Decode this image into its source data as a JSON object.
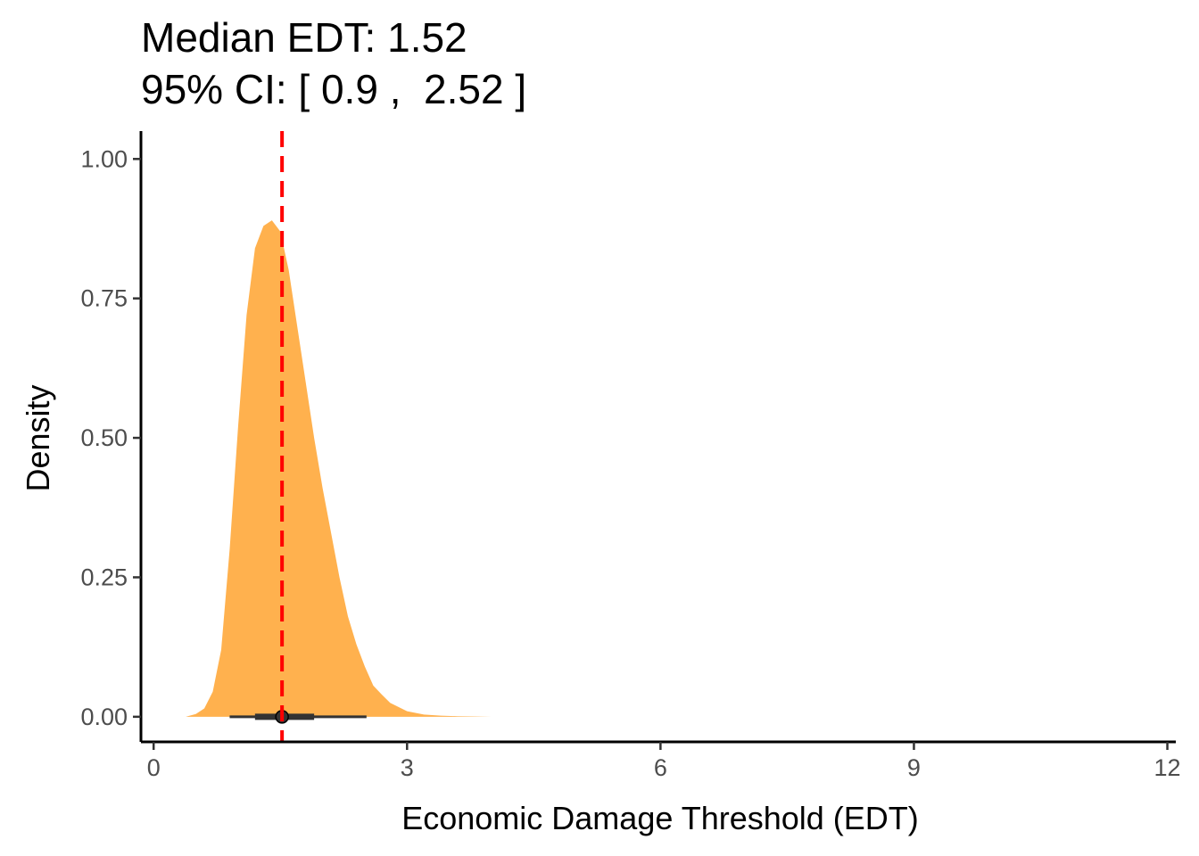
{
  "chart_data": {
    "type": "area",
    "title_lines": [
      "Median EDT: 1.52",
      "95% CI: [ 0.9 ,  2.52 ]"
    ],
    "xlabel": "Economic Damage Threshold (EDT)",
    "ylabel": "Density",
    "xlim": [
      -0.15,
      12.1
    ],
    "ylim": [
      -0.045,
      1.05
    ],
    "x_ticks": [
      0,
      3,
      6,
      9,
      12
    ],
    "x_tick_labels": [
      "0",
      "3",
      "6",
      "9",
      "12"
    ],
    "y_ticks": [
      0,
      0.25,
      0.5,
      0.75,
      1.0
    ],
    "y_tick_labels": [
      "0.00",
      "0.25",
      "0.50",
      "0.75",
      "1.00"
    ],
    "density": {
      "x": [
        0.38,
        0.5,
        0.6,
        0.7,
        0.8,
        0.9,
        1.0,
        1.1,
        1.2,
        1.3,
        1.4,
        1.5,
        1.6,
        1.7,
        1.8,
        1.9,
        2.0,
        2.1,
        2.2,
        2.3,
        2.4,
        2.5,
        2.6,
        2.7,
        2.8,
        3.0,
        3.2,
        3.4,
        3.6,
        3.8,
        4.0
      ],
      "y": [
        0.0,
        0.005,
        0.015,
        0.045,
        0.12,
        0.3,
        0.52,
        0.72,
        0.84,
        0.88,
        0.89,
        0.87,
        0.8,
        0.7,
        0.6,
        0.5,
        0.41,
        0.33,
        0.25,
        0.18,
        0.13,
        0.09,
        0.056,
        0.04,
        0.025,
        0.01,
        0.004,
        0.002,
        0.001,
        0.0005,
        0.0
      ],
      "color": "#ffb14e"
    },
    "median": 1.52,
    "median_line_color": "#ff0000",
    "interval_thin": [
      0.9,
      2.52
    ],
    "interval_thick": [
      1.2,
      1.9
    ],
    "point_color": "#333333"
  }
}
